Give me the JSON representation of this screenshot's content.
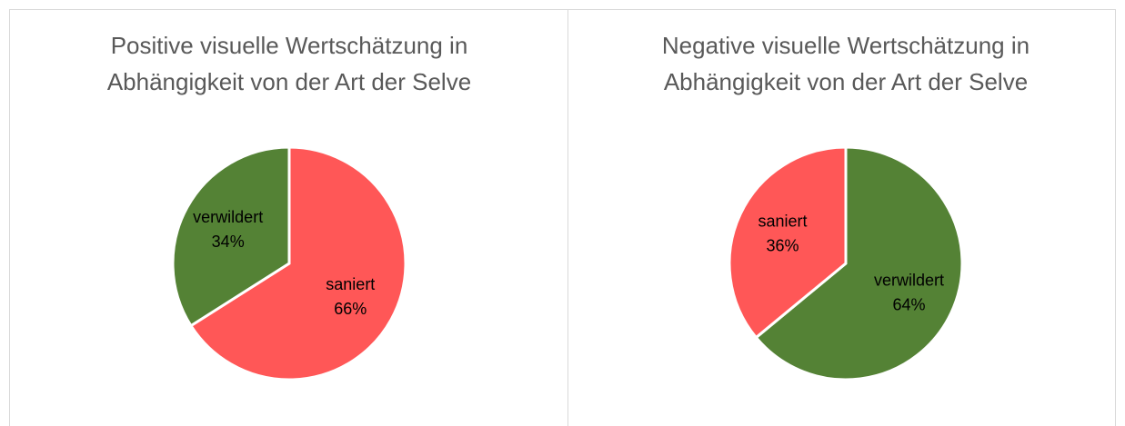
{
  "chart_data": [
    {
      "type": "pie",
      "title": [
        "Positive visuelle Wertschätzung in",
        "Abhängigkeit von der Art der Selve"
      ],
      "categories": [
        "saniert",
        "verwildert"
      ],
      "values": [
        66,
        34
      ],
      "value_labels": [
        "66%",
        "34%"
      ],
      "colors": [
        "#ff5757",
        "#548235"
      ]
    },
    {
      "type": "pie",
      "title": [
        "Negative visuelle Wertschätzung in",
        "Abhängigkeit von der Art der Selve"
      ],
      "categories": [
        "verwildert",
        "saniert"
      ],
      "values": [
        64,
        36
      ],
      "value_labels": [
        "64%",
        "36%"
      ],
      "colors": [
        "#548235",
        "#ff5757"
      ]
    }
  ]
}
